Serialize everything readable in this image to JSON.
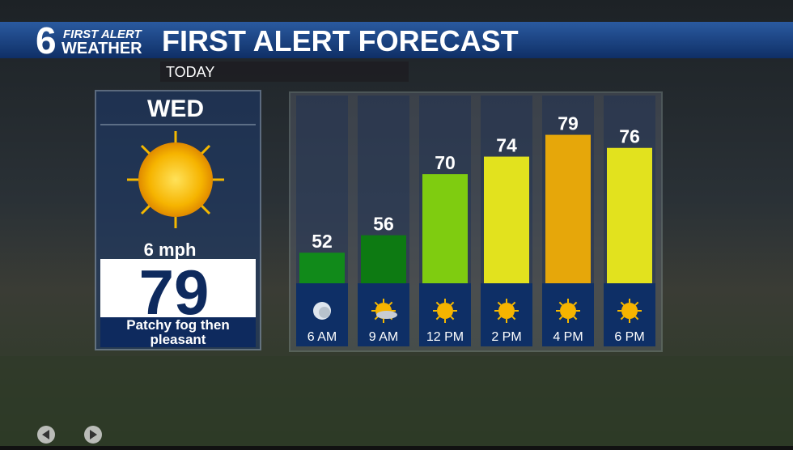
{
  "header": {
    "logo_number": "6",
    "logo_top": "FIRST ALERT",
    "logo_bottom": "WEATHER"
  },
  "day_panel": {
    "day": "WED",
    "wind": "6 mph",
    "high": 79,
    "summary": "Patchy fog then pleasant"
  },
  "chart_data": {
    "type": "bar",
    "title": "FIRST ALERT FORECAST",
    "subtitle": "TODAY",
    "categories": [
      "6 AM",
      "9 AM",
      "12 PM",
      "2 PM",
      "4 PM",
      "6 PM"
    ],
    "values": [
      52,
      56,
      70,
      74,
      79,
      76
    ],
    "colors": [
      "#118a1a",
      "#0d7a12",
      "#7fcc10",
      "#e2e21e",
      "#e6a70a",
      "#e2e21e"
    ],
    "ylim": [
      45,
      88
    ]
  }
}
